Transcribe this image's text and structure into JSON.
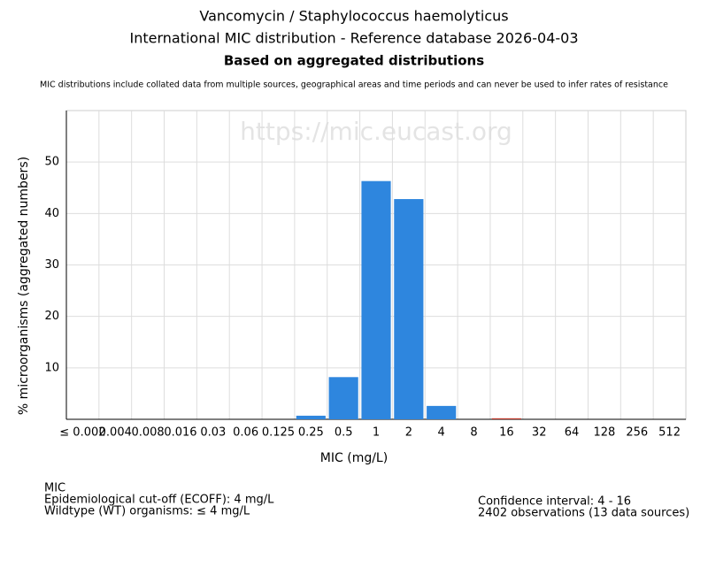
{
  "chart_data": {
    "type": "bar",
    "title": "Vancomycin / Staphylococcus haemolyticus",
    "subtitle": "International MIC distribution - Reference database 2026-04-03",
    "subtitle2": "Based on aggregated distributions",
    "note": "MIC distributions include collated data from multiple sources, geographical areas and time periods and can never be used to infer rates of resistance",
    "watermark": "https://mic.eucast.org",
    "x_label": "MIC (mg/L)",
    "y_label": "% microorganisms (aggregated numbers)",
    "categories": [
      "≤ 0.002",
      "0.004",
      "0.008",
      "0.016",
      "0.03",
      "0.06",
      "0.125",
      "0.25",
      "0.5",
      "1",
      "2",
      "4",
      "8",
      "16",
      "32",
      "64",
      "128",
      "256",
      "512"
    ],
    "values": [
      0,
      0,
      0,
      0,
      0,
      0,
      0,
      0.7,
      8.2,
      46.3,
      42.8,
      2.6,
      0,
      0.2,
      0,
      0,
      0,
      0,
      0
    ],
    "colors": [
      "#2e86de",
      "#2e86de",
      "#2e86de",
      "#2e86de",
      "#2e86de",
      "#2e86de",
      "#2e86de",
      "#2e86de",
      "#2e86de",
      "#2e86de",
      "#2e86de",
      "#2e86de",
      "#2e86de",
      "#c0392b",
      "#c0392b",
      "#c0392b",
      "#c0392b",
      "#c0392b",
      "#c0392b"
    ],
    "ylim": [
      0,
      60
    ],
    "yticks": [
      10,
      20,
      30,
      40,
      50
    ],
    "grid": true,
    "footer_left": [
      "MIC",
      "Epidemiological cut-off (ECOFF): 4 mg/L",
      "Wildtype (WT) organisms: ≤ 4 mg/L"
    ],
    "footer_right": [
      "Confidence interval: 4 - 16",
      "2402 observations (13 data sources)"
    ]
  }
}
